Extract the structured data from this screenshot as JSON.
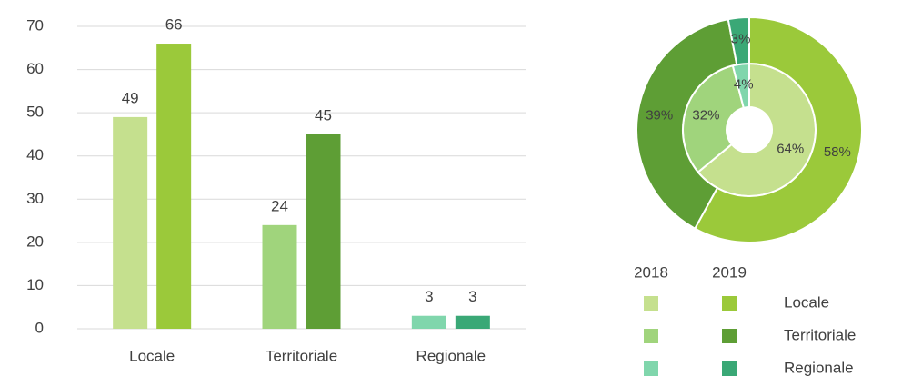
{
  "chart_data": [
    {
      "type": "bar",
      "categories": [
        "Locale",
        "Territoriale",
        "Regionale"
      ],
      "series": [
        {
          "colors": [
            "#c5e08e",
            "#a0d47c",
            "#80d6ac"
          ],
          "values": [
            49,
            24,
            3
          ]
        },
        {
          "colors": [
            "#9bc93a",
            "#5e9e35",
            "#3aa876"
          ],
          "values": [
            66,
            45,
            3
          ]
        }
      ],
      "ylim": [
        0,
        70
      ],
      "yticks": [
        0,
        10,
        20,
        30,
        40,
        50,
        60,
        70
      ],
      "grid": true
    },
    {
      "type": "pie",
      "categories": [
        "Locale",
        "Territoriale",
        "Regionale"
      ],
      "series": [
        {
          "name": "2018",
          "colors": [
            "#c5e08e",
            "#a0d47c",
            "#80d6ac"
          ],
          "values": [
            64,
            32,
            4
          ],
          "value_labels": [
            "64%",
            "32%",
            "4%"
          ]
        },
        {
          "name": "2019",
          "colors": [
            "#9bc93a",
            "#5e9e35",
            "#3aa876"
          ],
          "values": [
            58,
            39,
            3
          ],
          "value_labels": [
            "58%",
            "39%",
            "3%"
          ]
        }
      ]
    }
  ]
}
